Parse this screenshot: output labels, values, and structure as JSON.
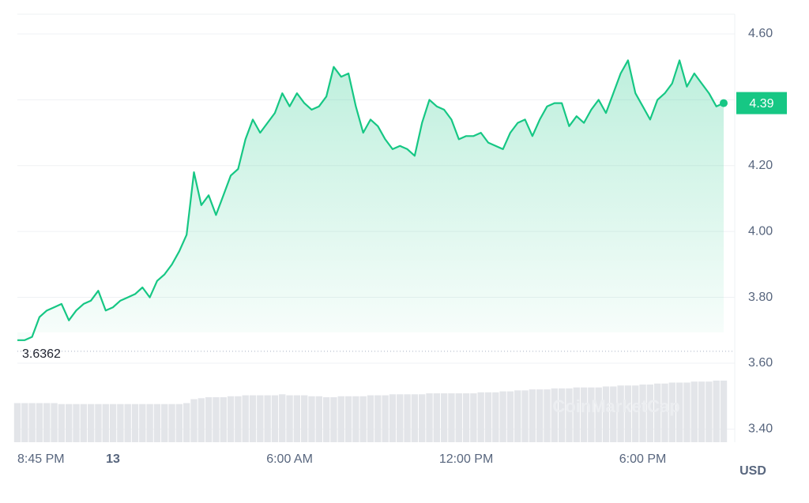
{
  "chart_data": {
    "type": "line",
    "categories": [
      "8:45 PM",
      null,
      null,
      null,
      null,
      null,
      null,
      null,
      null,
      null,
      null,
      null,
      null,
      "13",
      null,
      null,
      null,
      null,
      null,
      null,
      null,
      null,
      null,
      null,
      null,
      null,
      null,
      null,
      null,
      null,
      null,
      null,
      null,
      null,
      null,
      null,
      null,
      "6:00 AM",
      null,
      null,
      null,
      null,
      null,
      null,
      null,
      null,
      null,
      null,
      null,
      null,
      null,
      null,
      null,
      null,
      null,
      null,
      null,
      null,
      null,
      null,
      null,
      "12:00 PM",
      null,
      null,
      null,
      null,
      null,
      null,
      null,
      null,
      null,
      null,
      null,
      null,
      null,
      null,
      null,
      null,
      null,
      null,
      null,
      null,
      null,
      null,
      null,
      "6:00 PM",
      null,
      null,
      null,
      null,
      null,
      null,
      null,
      null,
      null,
      null,
      null
    ],
    "series": [
      {
        "color": "#16c784",
        "values": [
          3.67,
          3.67,
          3.68,
          3.74,
          3.76,
          3.77,
          3.78,
          3.73,
          3.76,
          3.78,
          3.79,
          3.82,
          3.76,
          3.77,
          3.79,
          3.8,
          3.81,
          3.83,
          3.8,
          3.85,
          3.87,
          3.9,
          3.94,
          3.99,
          4.18,
          4.08,
          4.11,
          4.05,
          4.11,
          4.17,
          4.19,
          4.28,
          4.34,
          4.3,
          4.33,
          4.36,
          4.42,
          4.38,
          4.42,
          4.39,
          4.37,
          4.38,
          4.41,
          4.5,
          4.47,
          4.48,
          4.38,
          4.3,
          4.34,
          4.32,
          4.28,
          4.25,
          4.26,
          4.25,
          4.23,
          4.33,
          4.4,
          4.38,
          4.37,
          4.34,
          4.28,
          4.29,
          4.29,
          4.3,
          4.27,
          4.26,
          4.25,
          4.3,
          4.33,
          4.34,
          4.29,
          4.34,
          4.38,
          4.39,
          4.39,
          4.32,
          4.35,
          4.33,
          4.37,
          4.4,
          4.36,
          4.42,
          4.48,
          4.52,
          4.42,
          4.38,
          4.34,
          4.4,
          4.42,
          4.45,
          4.52,
          4.44,
          4.48,
          4.45,
          4.42,
          4.38,
          4.39
        ]
      }
    ],
    "volume": {
      "color": "#e3e5e9",
      "values": [
        40,
        40,
        40,
        40,
        40,
        40,
        39,
        39,
        39,
        39,
        39,
        39,
        39,
        39,
        39,
        39,
        39,
        39,
        39,
        39,
        39,
        39,
        39,
        40,
        44,
        45,
        46,
        46,
        46,
        47,
        47,
        48,
        48,
        48,
        48,
        48,
        49,
        48,
        48,
        48,
        47,
        47,
        46,
        46,
        47,
        47,
        47,
        47,
        48,
        48,
        48,
        49,
        49,
        49,
        49,
        49,
        50,
        50,
        50,
        50,
        50,
        50,
        50,
        51,
        51,
        51,
        52,
        52,
        53,
        53,
        54,
        54,
        54,
        55,
        55,
        55,
        56,
        56,
        56,
        56,
        57,
        57,
        58,
        58,
        58,
        59,
        59,
        60,
        60,
        61,
        61,
        61,
        62,
        62,
        62,
        63,
        63
      ]
    },
    "ylim": [
      3.36,
      4.66
    ],
    "yticks": [
      {
        "value": 3.4,
        "label": "3.40"
      },
      {
        "value": 3.6,
        "label": "3.60"
      },
      {
        "value": 3.8,
        "label": "3.80"
      },
      {
        "value": 4.0,
        "label": "4.00"
      },
      {
        "value": 4.2,
        "label": "4.20"
      },
      {
        "value": 4.4,
        "label": "4.40"
      },
      {
        "value": 4.6,
        "label": "4.60"
      }
    ],
    "grid": true,
    "reference": 3.6362,
    "y_label": "USD",
    "watermark": "CoinMarketCap"
  }
}
